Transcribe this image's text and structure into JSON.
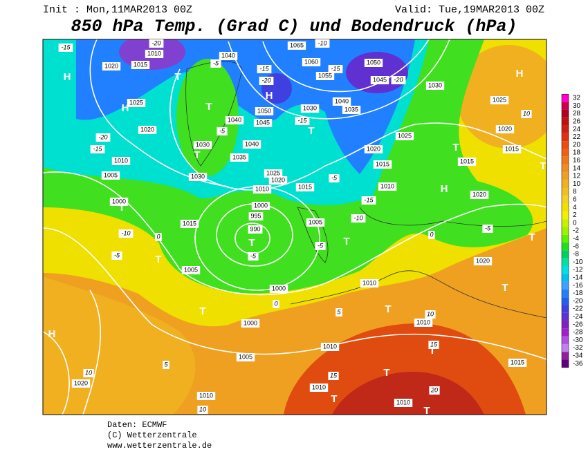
{
  "header": {
    "init": "Init : Mon,11MAR2013 00Z",
    "valid": "Valid: Tue,19MAR2013 00Z",
    "title": "850 hPa Temp. (Grad C) und Bodendruck (hPa)"
  },
  "scale": {
    "labels": [
      32,
      30,
      28,
      26,
      24,
      22,
      20,
      18,
      16,
      14,
      12,
      10,
      8,
      6,
      4,
      2,
      0,
      -2,
      -4,
      -6,
      -8,
      -10,
      -12,
      -14,
      -16,
      -18,
      -20,
      -22,
      -24,
      -26,
      -28,
      -30,
      -32,
      -34,
      -36
    ],
    "colors": [
      "#ff00cc",
      "#d0004c",
      "#b00020",
      "#c01010",
      "#d02010",
      "#e03010",
      "#e84c10",
      "#f06010",
      "#f07818",
      "#f08c20",
      "#f0a020",
      "#f0b020",
      "#f0c020",
      "#f0d020",
      "#f0e000",
      "#f0f000",
      "#c8f000",
      "#a0f000",
      "#60f000",
      "#20e020",
      "#00d060",
      "#00e0a0",
      "#00e0e0",
      "#00c0f0",
      "#40a0ff",
      "#2080ff",
      "#2060f0",
      "#4040e0",
      "#6030d0",
      "#8020c0",
      "#a020d0",
      "#b050e0",
      "#c080f0",
      "#9020a0",
      "#600080"
    ]
  },
  "map": {
    "pressure_labels": [
      "1010",
      "1015",
      "1020",
      "1040",
      "1065",
      "1060",
      "1055",
      "1050",
      "1045",
      "1030",
      "1040",
      "1035",
      "1030",
      "1025",
      "1020",
      "1030",
      "1040",
      "1045",
      "1050",
      "1040",
      "1035",
      "1030",
      "1025",
      "1020",
      "1010",
      "1015",
      "1020",
      "1025",
      "1015",
      "1010",
      "1015",
      "1020",
      "1025",
      "1015",
      "1020",
      "1000",
      "995",
      "990",
      "1005",
      "1010",
      "1005",
      "1000",
      "1015",
      "1005",
      "1000",
      "1000",
      "1005",
      "1010",
      "1010",
      "1010",
      "1020",
      "1015",
      "1010",
      "1010",
      "1010",
      "1020"
    ],
    "temperature_labels": [
      "-15",
      "-20",
      "-10",
      "-15",
      "-20",
      "-5",
      "-15",
      "-20",
      "-15",
      "-5",
      "-20",
      "-15",
      "-5",
      "-15",
      "-10",
      "-10",
      "-5",
      "-5",
      "-5",
      "-5",
      "0",
      "0",
      "0",
      "10",
      "10",
      "15",
      "20",
      "15",
      "10",
      "10",
      "5",
      "5"
    ],
    "centers": [
      "H",
      "H",
      "T",
      "T",
      "H",
      "T",
      "T",
      "H",
      "T",
      "H",
      "T",
      "T",
      "T",
      "T",
      "T",
      "T",
      "T",
      "T",
      "T",
      "H",
      "T",
      "T",
      "T",
      "T"
    ]
  },
  "footer": {
    "source": "Daten: ECMWF",
    "copyright": "(C) Wetterzentrale",
    "url": "www.wetterzentrale.de"
  }
}
